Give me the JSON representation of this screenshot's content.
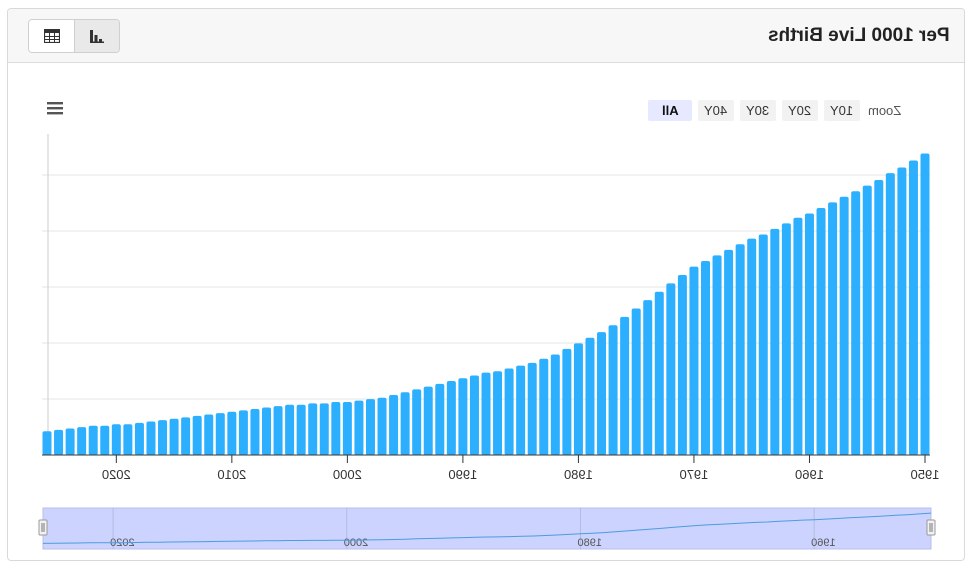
{
  "title": "Per 1000 Live Births",
  "view_toggle": {
    "table_icon": "table-icon",
    "chart_icon": "bar-chart-icon"
  },
  "menu_icon": "hamburger-menu-icon",
  "zoom": {
    "label": "Zoom",
    "buttons": [
      "10Y",
      "20Y",
      "30Y",
      "40Y",
      "All"
    ],
    "selected": "All"
  },
  "colors": {
    "bar": "#2caffe",
    "navigator_fill": "#ccd3ff",
    "navigator_line": "#4a9de0"
  },
  "chart_data": {
    "type": "bar",
    "title": "",
    "xlabel": "",
    "ylabel": "",
    "x_axis_reversed": true,
    "x_tick_labels": [
      "1950",
      "1960",
      "1970",
      "1980",
      "1990",
      "2000",
      "2010",
      "2020"
    ],
    "navigator_tick_labels": [
      "1960",
      "1980",
      "2000",
      "2020"
    ],
    "grid": true,
    "categories": [
      1950,
      1951,
      1952,
      1953,
      1954,
      1955,
      1956,
      1957,
      1958,
      1959,
      1960,
      1961,
      1962,
      1963,
      1964,
      1965,
      1966,
      1967,
      1968,
      1969,
      1970,
      1971,
      1972,
      1973,
      1974,
      1975,
      1976,
      1977,
      1978,
      1979,
      1980,
      1981,
      1982,
      1983,
      1984,
      1985,
      1986,
      1987,
      1988,
      1989,
      1990,
      1991,
      1992,
      1993,
      1994,
      1995,
      1996,
      1997,
      1998,
      1999,
      2000,
      2001,
      2002,
      2003,
      2004,
      2005,
      2006,
      2007,
      2008,
      2009,
      2010,
      2011,
      2012,
      2013,
      2014,
      2015,
      2016,
      2017,
      2018,
      2019,
      2020,
      2021,
      2022,
      2023,
      2024,
      2025,
      2026
    ],
    "values": [
      216,
      211,
      206,
      202,
      197,
      193,
      189,
      185,
      181,
      177,
      173,
      170,
      166,
      162,
      158,
      155,
      151,
      147,
      143,
      139,
      135,
      129,
      123,
      117,
      111,
      105,
      99,
      93,
      88,
      84,
      80,
      76,
      72,
      69,
      66,
      64,
      62,
      60,
      59,
      57,
      55,
      53,
      51,
      49,
      47,
      45,
      43,
      41,
      40,
      39,
      38,
      38,
      37,
      37,
      36,
      36,
      35,
      34,
      33,
      32,
      31,
      30,
      29,
      28,
      27,
      26,
      25,
      24,
      23,
      22,
      22,
      21,
      21,
      20,
      19,
      18,
      17
    ],
    "ylim": [
      0,
      230
    ]
  }
}
